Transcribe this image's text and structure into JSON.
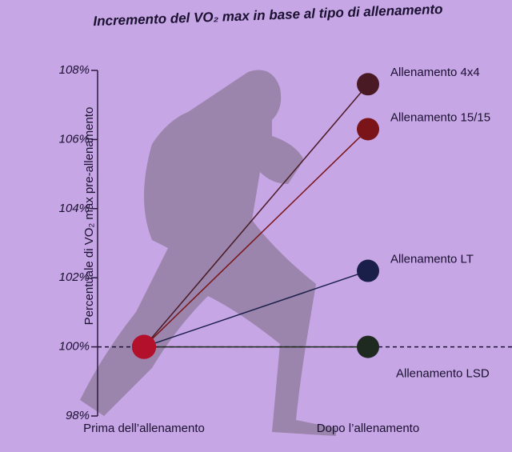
{
  "chart_data": {
    "type": "line",
    "title": "Incremento del VO₂ max in base al tipo di allenamento",
    "y_label": "Percentuale di VO₂ max pre-allenamento",
    "categories": [
      "Prima dell’allenamento",
      "Dopo l’allenamento"
    ],
    "series": [
      {
        "name": "Allenamento 4x4",
        "color": "#4a1a24",
        "values": [
          100,
          107.6
        ]
      },
      {
        "name": "Allenamento 15/15",
        "color": "#7a1418",
        "values": [
          100,
          106.3
        ]
      },
      {
        "name": "Allenamento LT",
        "color": "#1a1f4a",
        "values": [
          100,
          102.2
        ]
      },
      {
        "name": "Allenamento LSD",
        "color": "#1e2a20",
        "values": [
          100,
          100
        ]
      }
    ],
    "start_color": "#b3102c",
    "reference_line": 100,
    "ylim": [
      98,
      108
    ],
    "yticks": [
      {
        "value": 98,
        "label": "98%"
      },
      {
        "value": 100,
        "label": "100%"
      },
      {
        "value": 102,
        "label": "102%"
      },
      {
        "value": 104,
        "label": "104%"
      },
      {
        "value": 106,
        "label": "106%"
      },
      {
        "value": 108,
        "label": "108%"
      }
    ]
  }
}
